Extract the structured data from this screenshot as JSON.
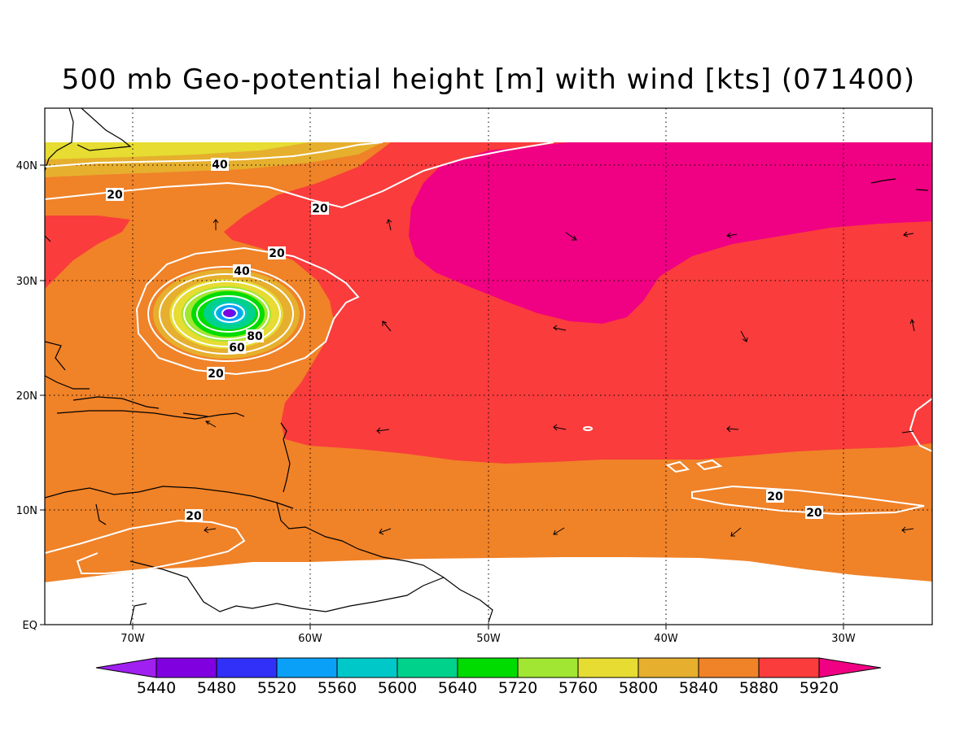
{
  "title": "500 mb Geo-potential height [m] with wind [kts] (071400)",
  "colors": {
    "c5440": "#a020f0",
    "c5480": "#8000e0",
    "c5520": "#3030f8",
    "c5560": "#0aa0f8",
    "c5600": "#00c8c8",
    "c5640": "#00d28c",
    "c5720": "#00dc00",
    "c5760": "#a0e632",
    "c5800": "#e6dc32",
    "c5840": "#e6af2d",
    "c5880": "#f08228",
    "c5920": "#fa3c3c",
    "c5960": "#f00082",
    "contour": "#ffffff",
    "coast": "#000000"
  },
  "axes": {
    "lon_labels": [
      "70W",
      "60W",
      "50W",
      "40W",
      "30W"
    ],
    "lat_labels": [
      "EQ",
      "10N",
      "20N",
      "30N",
      "40N"
    ]
  },
  "colorbar": {
    "labels": [
      "5440",
      "5480",
      "5520",
      "5560",
      "5600",
      "5640",
      "5720",
      "5760",
      "5800",
      "5840",
      "5880",
      "5920"
    ]
  },
  "wind_contour_labels": [
    "40",
    "20",
    "20",
    "20",
    "40",
    "80",
    "60",
    "20",
    "20",
    "20",
    "20"
  ]
}
